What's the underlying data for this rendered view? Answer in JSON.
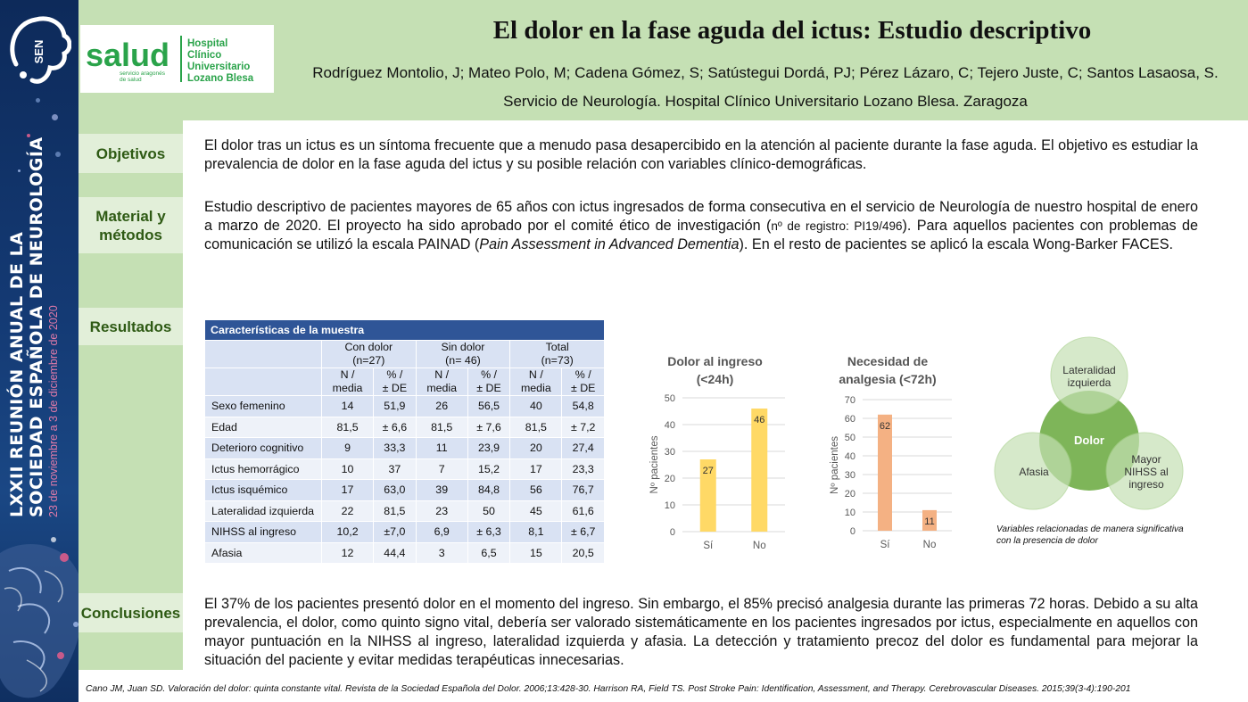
{
  "banner": {
    "logo_text": "SEN",
    "line1": "LXXII REUNIÓN ANUAL DE LA",
    "line2": "SOCIEDAD ESPAÑOLA DE NEUROLOGÍA",
    "dates": "23 de noviembre a 3 de diciembre de 2020"
  },
  "logo": {
    "brand": "salud",
    "brand_sub1": "servicio aragonés",
    "brand_sub2": "de salud",
    "hospital_lines": [
      "Hospital",
      "Clínico",
      "Universitario",
      "Lozano Blesa"
    ]
  },
  "header": {
    "title": "El dolor en la fase aguda del ictus: Estudio descriptivo",
    "authors": "Rodríguez Montolio, J;  Mateo Polo, M; Cadena Gómez, S; Satústegui Dordá, PJ; Pérez Lázaro, C; Tejero Juste, C; Santos Lasaosa, S.",
    "affiliation": "Servicio de Neurología. Hospital Clínico Universitario Lozano Blesa. Zaragoza"
  },
  "sections": {
    "objetivos": {
      "label": "Objetivos",
      "text": "El dolor tras un ictus es un síntoma frecuente que a menudo pasa desapercibido en la atención al paciente durante la fase aguda. El objetivo es estudiar la prevalencia de dolor en la fase aguda del ictus y su posible relación con variables clínico-demográficas."
    },
    "material": {
      "label_line1": "Material y",
      "label_line2": "métodos",
      "text_a": "Estudio descriptivo de pacientes mayores de 65 años con ictus ingresados de forma consecutiva en el servicio de Neurología de nuestro hospital de enero a marzo de 2020. El proyecto ha sido aprobado por el comité ético de investigación (",
      "text_registro": "nº de registro: PI19/496",
      "text_b": "). Para aquellos pacientes con problemas de comunicación se utilizó la escala PAINAD (",
      "text_italic": "Pain Assessment in Advanced Dementia",
      "text_c": "). En el resto de pacientes se aplicó la escala Wong-Barker FACES."
    },
    "resultados": {
      "label": "Resultados"
    },
    "conclusiones": {
      "label": "Conclusiones",
      "text": "El 37% de los pacientes presentó dolor en el momento del ingreso. Sin embargo, el 85% precisó analgesia durante las primeras 72 horas. Debido a su alta prevalencia, el dolor, como quinto signo vital, debería ser valorado sistemáticamente en los pacientes ingresados por ictus, especialmente en aquellos con mayor puntuación en la NIHSS al ingreso, lateralidad izquierda y afasia. La detección y tratamiento precoz del dolor es fundamental para mejorar la situación del paciente y evitar medidas terapéuticas innecesarias."
    }
  },
  "table": {
    "caption": "Características de la muestra",
    "groups": [
      {
        "line1": "Con dolor",
        "line2": "(n=27)"
      },
      {
        "line1": "Sin dolor",
        "line2": "(n= 46)"
      },
      {
        "line1": "Total",
        "line2": "(n=73)"
      }
    ],
    "sub_n": {
      "line1": "N /",
      "line2": "media"
    },
    "sub_pct": {
      "line1": "% /",
      "line2": "± DE"
    },
    "rows": [
      {
        "label": "Sexo femenino",
        "cells": [
          "14",
          "51,9",
          "26",
          "56,5",
          "40",
          "54,8"
        ]
      },
      {
        "label": "Edad",
        "cells": [
          "81,5",
          "± 6,6",
          "81,5",
          "± 7,6",
          "81,5",
          "± 7,2"
        ]
      },
      {
        "label": "Deterioro cognitivo",
        "cells": [
          "9",
          "33,3",
          "11",
          "23,9",
          "20",
          "27,4"
        ]
      },
      {
        "label": "Ictus hemorrágico",
        "cells": [
          "10",
          "37",
          "7",
          "15,2",
          "17",
          "23,3"
        ]
      },
      {
        "label": "Ictus isquémico",
        "cells": [
          "17",
          "63,0",
          "39",
          "84,8",
          "56",
          "76,7"
        ]
      },
      {
        "label": "Lateralidad izquierda",
        "cells": [
          "22",
          "81,5",
          "23",
          "50",
          "45",
          "61,6"
        ]
      },
      {
        "label": "NIHSS al ingreso",
        "cells": [
          "10,2",
          "±7,0",
          "6,9",
          "± 6,3",
          "8,1",
          "± 6,7"
        ]
      },
      {
        "label": "Afasia",
        "cells": [
          "12",
          "44,4",
          "3",
          "6,5",
          "15",
          "20,5"
        ]
      }
    ]
  },
  "chart_data": [
    {
      "type": "bar",
      "title_line1": "Dolor al ingreso",
      "title_line2": "(<24h)",
      "categories": [
        "Sí",
        "No"
      ],
      "values": [
        27,
        46
      ],
      "ylabel": "Nº pacientes",
      "ylim": [
        0,
        50
      ],
      "yticks": [
        0,
        10,
        20,
        30,
        40,
        50
      ],
      "color": "#ffd966",
      "grid": true
    },
    {
      "type": "bar",
      "title_line1": "Necesidad de",
      "title_line2": "analgesia (<72h)",
      "categories": [
        "Sí",
        "No"
      ],
      "values": [
        62,
        11
      ],
      "ylabel": "Nº pacientes",
      "ylim": [
        0,
        70
      ],
      "yticks": [
        0,
        10,
        20,
        30,
        40,
        50,
        60,
        70
      ],
      "color": "#f4b183",
      "grid": true
    }
  ],
  "venn": {
    "center": "Dolor",
    "top_line1": "Lateralidad",
    "top_line2": "izquierda",
    "left": "Afasia",
    "right_line1": "Mayor",
    "right_line2": "NIHSS al",
    "right_line3": "ingreso",
    "note_line1": "Variables relacionadas de manera significativa",
    "note_line2": "con la presencia de dolor"
  },
  "footer": "Cano JM, Juan SD. Valoración del dolor: quinta constante vital. Revista de la Sociedad Española del Dolor. 2006;13:428-30. Harrison RA, Field TS. Post Stroke Pain: Identification, Assessment, and Therapy. Cerebrovascular Diseases. 2015;39(3-4):190-201"
}
